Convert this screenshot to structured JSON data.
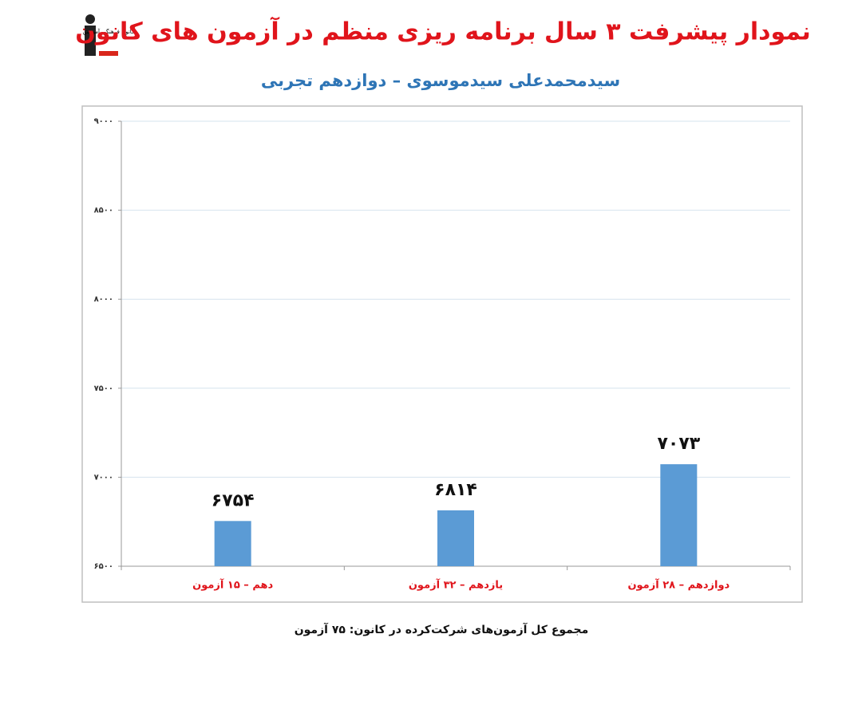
{
  "logo": "کانون فرهنگی آموزش",
  "chart_data": {
    "type": "bar",
    "title": "نمودار پیشرفت ۳ سال برنامه ریزی منظم در آزمون های کانون",
    "subtitle": "سیدمحمدعلی سیدموسوی – دوازدهم تجربی",
    "categories": [
      "دهم – ۱۵ آزمون",
      "یازدهم – ۳۲ آزمون",
      "دوازدهم – ۲۸ آزمون"
    ],
    "values": [
      6754,
      6814,
      7073
    ],
    "value_labels": [
      "۶۷۵۴",
      "۶۸۱۴",
      "۷۰۷۳"
    ],
    "color": "#5b9bd5",
    "ylim": [
      6500,
      9000
    ],
    "yticks": [
      {
        "value": 6500,
        "label": "۶۵۰۰"
      },
      {
        "value": 7000,
        "label": "۷۰۰۰"
      },
      {
        "value": 7500,
        "label": "۷۵۰۰"
      },
      {
        "value": 8000,
        "label": "۸۰۰۰"
      },
      {
        "value": 8500,
        "label": "۸۵۰۰"
      },
      {
        "value": 9000,
        "label": "۹۰۰۰"
      }
    ],
    "grid": true,
    "footnote": "مجموع کل آزمون‌های شرکت‌کرده در کانون:  ۷۵ آزمون"
  }
}
